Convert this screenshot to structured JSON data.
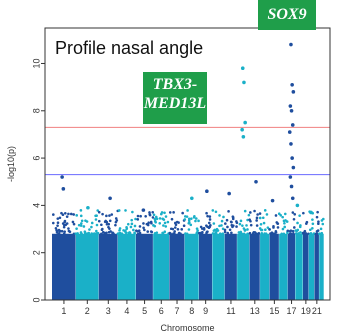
{
  "chart_data": {
    "type": "scatter",
    "title": "Profile nasal angle",
    "xlabel": "Chromosome",
    "ylabel": "-log10(p)",
    "ylim": [
      0,
      11.5
    ],
    "y_ticks": [
      "0",
      "2",
      "4",
      "6",
      "8",
      "10"
    ],
    "x_tick_labels": [
      "1",
      "2",
      "3",
      "4",
      "5",
      "6",
      "7",
      "8",
      "9",
      "11",
      "13",
      "15",
      "17",
      "19",
      "21"
    ],
    "chromosomes": [
      "1",
      "2",
      "3",
      "4",
      "5",
      "6",
      "7",
      "8",
      "9",
      "10",
      "11",
      "12",
      "13",
      "14",
      "15",
      "16",
      "17",
      "18",
      "19",
      "20",
      "21",
      "22"
    ],
    "series_colors": [
      "#1f4e9e",
      "#1ab0c8"
    ],
    "thresholds": [
      {
        "value": 7.3,
        "color": "#f08080"
      },
      {
        "value": 5.3,
        "color": "#6a6aff"
      }
    ],
    "peak_points": [
      {
        "chr": "1",
        "y": 5.2
      },
      {
        "chr": "1",
        "y": 4.7
      },
      {
        "chr": "2",
        "y": 3.9
      },
      {
        "chr": "3",
        "y": 4.3
      },
      {
        "chr": "5",
        "y": 3.8
      },
      {
        "chr": "8",
        "y": 4.3
      },
      {
        "chr": "9",
        "y": 4.6
      },
      {
        "chr": "11",
        "y": 4.5
      },
      {
        "chr": "12",
        "y": 9.8
      },
      {
        "chr": "12",
        "y": 9.2
      },
      {
        "chr": "12",
        "y": 7.5
      },
      {
        "chr": "12",
        "y": 7.2
      },
      {
        "chr": "12",
        "y": 6.9
      },
      {
        "chr": "13",
        "y": 5.0
      },
      {
        "chr": "15",
        "y": 4.2
      },
      {
        "chr": "17",
        "y": 10.8
      },
      {
        "chr": "17",
        "y": 9.1
      },
      {
        "chr": "17",
        "y": 8.8
      },
      {
        "chr": "17",
        "y": 8.2
      },
      {
        "chr": "17",
        "y": 8.0
      },
      {
        "chr": "17",
        "y": 7.4
      },
      {
        "chr": "17",
        "y": 7.1
      },
      {
        "chr": "17",
        "y": 6.6
      },
      {
        "chr": "17",
        "y": 6.0
      },
      {
        "chr": "17",
        "y": 5.6
      },
      {
        "chr": "17",
        "y": 5.2
      },
      {
        "chr": "17",
        "y": 4.8
      },
      {
        "chr": "17",
        "y": 4.3
      },
      {
        "chr": "18",
        "y": 4.0
      },
      {
        "chr": "20",
        "y": 3.7
      }
    ],
    "gene_labels": [
      "SOX9",
      "TBX3-\nMED13L"
    ]
  }
}
